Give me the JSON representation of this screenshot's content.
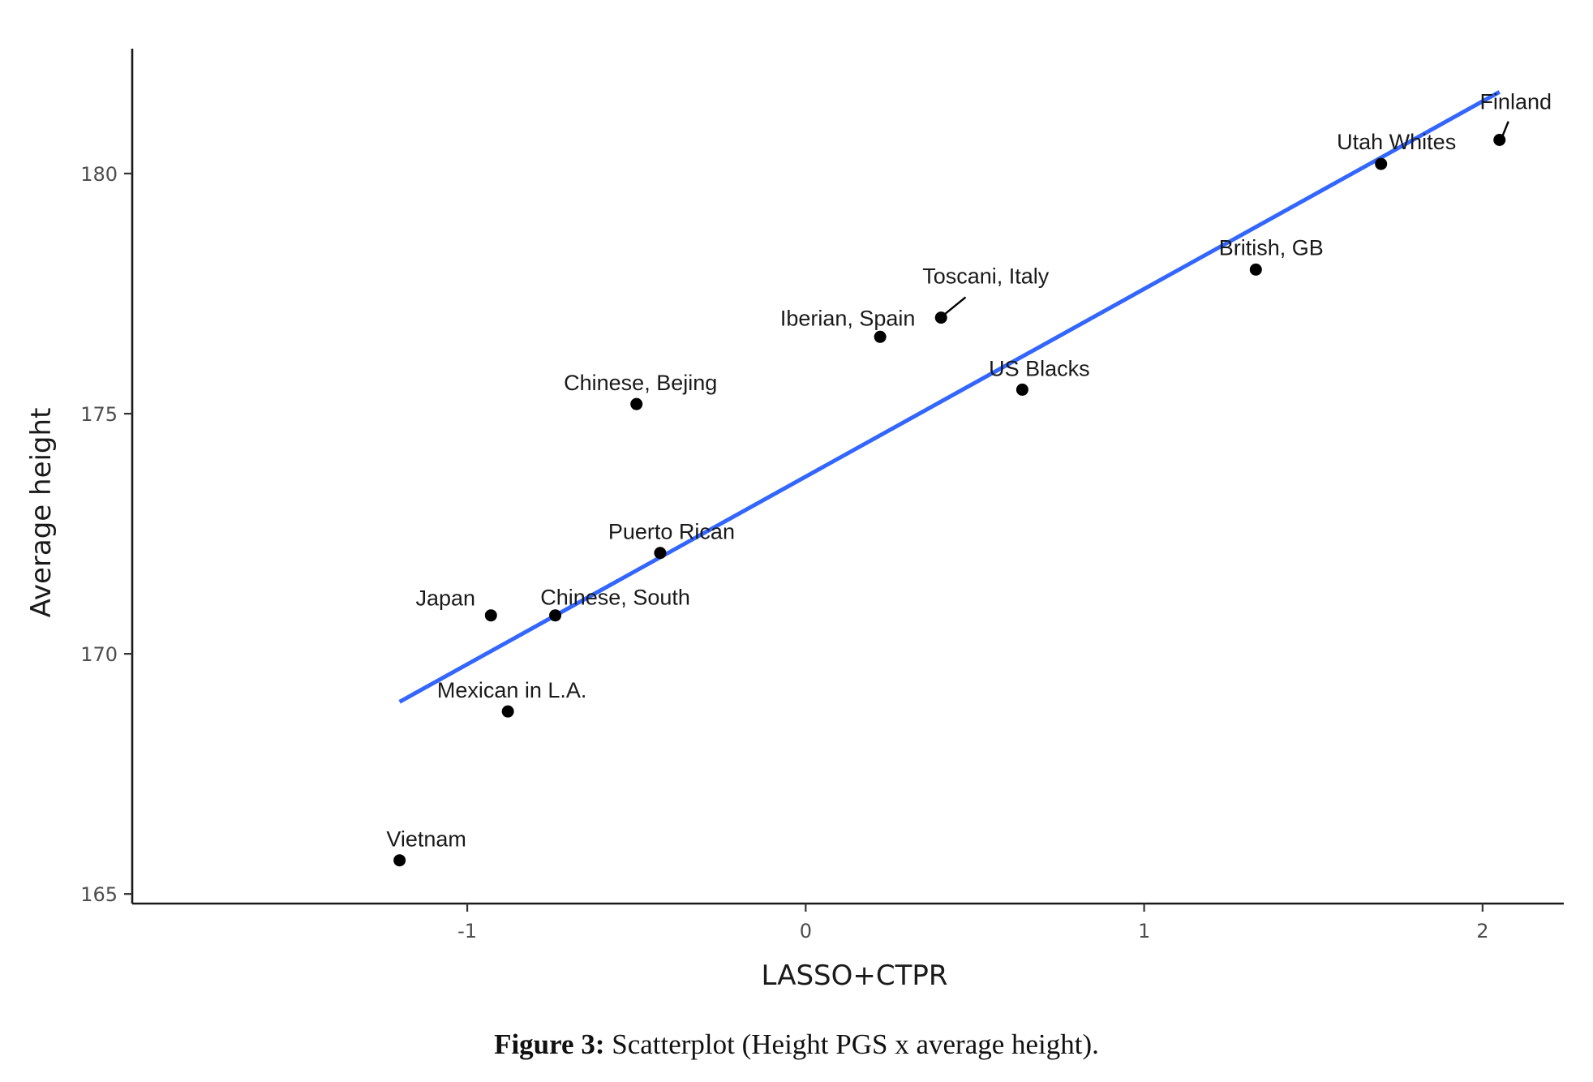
{
  "chart_data": {
    "type": "scatter",
    "xlabel": "LASSO+CTPR",
    "ylabel": "Average height",
    "xlim": [
      -1.99,
      2.24
    ],
    "ylim": [
      164.8,
      182.6
    ],
    "x_ticks": [
      -1,
      0,
      1,
      2
    ],
    "x_tick_labels": [
      "-1",
      "0",
      "1",
      "2"
    ],
    "y_ticks": [
      165,
      170,
      175,
      180
    ],
    "y_tick_labels": [
      "165",
      "170",
      "175",
      "180"
    ],
    "grid": false,
    "legend": "none",
    "points": [
      {
        "label": "Finland",
        "x": 2.05,
        "y": 180.7
      },
      {
        "label": "Utah Whites",
        "x": 1.7,
        "y": 180.2
      },
      {
        "label": "British, GB",
        "x": 1.33,
        "y": 178.0
      },
      {
        "label": "Toscani, Italy",
        "x": 0.4,
        "y": 177.0
      },
      {
        "label": "Iberian, Spain",
        "x": 0.22,
        "y": 176.6
      },
      {
        "label": "US Blacks",
        "x": 0.64,
        "y": 175.5
      },
      {
        "label": "Chinese, Bejing",
        "x": -0.5,
        "y": 175.2
      },
      {
        "label": "Puerto Rican",
        "x": -0.43,
        "y": 172.1
      },
      {
        "label": "Japan",
        "x": -0.93,
        "y": 170.8
      },
      {
        "label": "Chinese, South",
        "x": -0.74,
        "y": 170.8
      },
      {
        "label": "Mexican in L.A.",
        "x": -0.88,
        "y": 168.8
      },
      {
        "label": "Vietnam",
        "x": -1.2,
        "y": 165.7
      }
    ],
    "fit_line": {
      "x": [
        -1.2,
        2.05
      ],
      "y": [
        169.0,
        181.7
      ],
      "color": "#3366ff"
    },
    "point_color": "#000000"
  },
  "caption": {
    "label": "Figure 3:",
    "text": " Scatterplot (Height PGS x average height)."
  }
}
